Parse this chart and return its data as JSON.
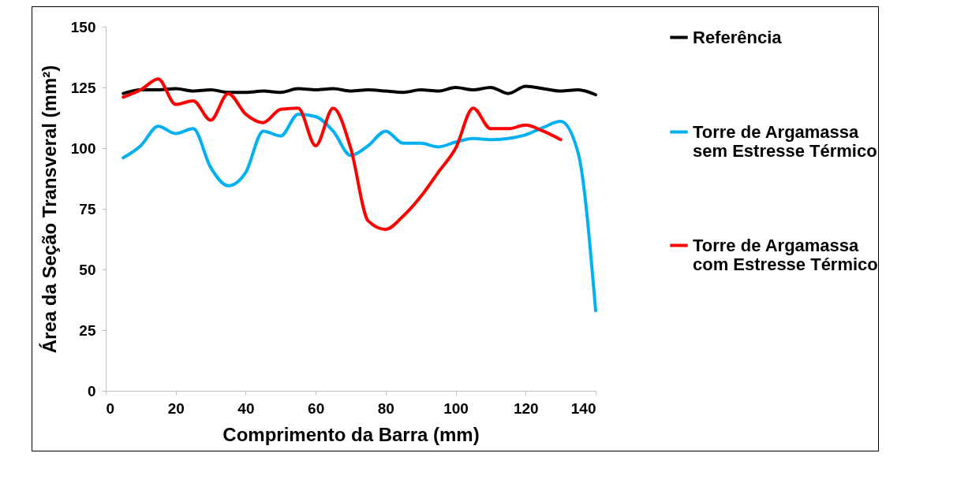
{
  "chart_data": {
    "type": "line",
    "xlabel": "Comprimento da Barra (mm)",
    "ylabel": "Área da Seção Transveral (mm²)",
    "x": [
      5,
      10,
      15,
      20,
      25,
      30,
      35,
      40,
      45,
      50,
      55,
      60,
      65,
      70,
      75,
      80,
      85,
      90,
      95,
      100,
      105,
      110,
      115,
      120,
      125,
      130,
      135,
      140
    ],
    "xlim": [
      0,
      140
    ],
    "xticks": [
      0,
      20,
      40,
      60,
      80,
      100,
      120,
      140
    ],
    "ylim": [
      0,
      150
    ],
    "yticks": [
      0,
      25,
      50,
      75,
      100,
      125,
      150
    ],
    "grid": false,
    "legend": "right",
    "marker": "none",
    "line_style": "solid",
    "series": [
      {
        "name": "Referência",
        "color": "#000000",
        "values": [
          122.5,
          124,
          124,
          124.5,
          123.5,
          124,
          123,
          123,
          123.5,
          123,
          124.5,
          124,
          124.5,
          123.5,
          124,
          123.5,
          123,
          124,
          123.5,
          125,
          124,
          125,
          122.5,
          125.5,
          124.5,
          123.5,
          124,
          122
        ]
      },
      {
        "name": "Torre de Argamassa sem Estresse Térmico",
        "color": "#00b0f0",
        "values": [
          96,
          101,
          109,
          106,
          108,
          92,
          84.5,
          90,
          107,
          105,
          114,
          113,
          107,
          97,
          101,
          107,
          102,
          102,
          100.5,
          102.5,
          104,
          103.5,
          104,
          105.5,
          108.5,
          111,
          98,
          33
        ]
      },
      {
        "name": "Torre de Argamassa com Estresse Térmico",
        "color": "#ff0000",
        "values": [
          121,
          124,
          128.5,
          118,
          119.5,
          111.5,
          122.5,
          114,
          110.5,
          116,
          116.5,
          101,
          116.5,
          100,
          70,
          66.5,
          72,
          80,
          90,
          100,
          116.5,
          108,
          108,
          109.5,
          107,
          103.5,
          null,
          null
        ]
      }
    ]
  }
}
